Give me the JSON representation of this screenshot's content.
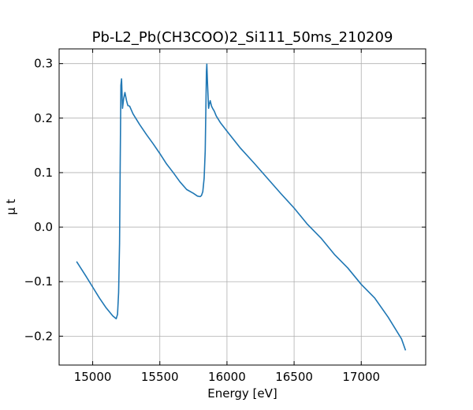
{
  "chart_data": {
    "type": "line",
    "title": "Pb-L2_Pb(CH3COO)2_Si111_50ms_210209",
    "xlabel": "Energy [eV]",
    "ylabel": "μ t",
    "xlim": [
      14750,
      17480
    ],
    "ylim": [
      -0.253,
      0.327
    ],
    "xticks": [
      15000,
      15500,
      16000,
      16500,
      17000
    ],
    "xtick_labels": [
      "15000",
      "15500",
      "16000",
      "16500",
      "17000"
    ],
    "yticks": [
      -0.2,
      -0.1,
      0.0,
      0.1,
      0.2,
      0.3
    ],
    "ytick_labels": [
      "−0.2",
      "−0.1",
      "0.0",
      "0.1",
      "0.2",
      "0.3"
    ],
    "grid": true,
    "legend": "none",
    "series": [
      {
        "color": "#1f77b4",
        "x": [
          14880,
          14950,
          15000,
          15050,
          15100,
          15150,
          15175,
          15185,
          15193,
          15200,
          15205,
          15210,
          15215,
          15222,
          15230,
          15240,
          15252,
          15262,
          15275,
          15300,
          15350,
          15400,
          15450,
          15500,
          15550,
          15600,
          15650,
          15700,
          15750,
          15780,
          15800,
          15810,
          15820,
          15830,
          15838,
          15843,
          15847,
          15850,
          15855,
          15860,
          15863,
          15868,
          15875,
          15885,
          15895,
          15905,
          15920,
          15950,
          16000,
          16100,
          16200,
          16300,
          16400,
          16500,
          16600,
          16700,
          16800,
          16900,
          17000,
          17100,
          17200,
          17300,
          17330
        ],
        "y": [
          -0.063,
          -0.09,
          -0.11,
          -0.13,
          -0.148,
          -0.163,
          -0.168,
          -0.16,
          -0.12,
          -0.03,
          0.12,
          0.26,
          0.272,
          0.218,
          0.235,
          0.247,
          0.232,
          0.223,
          0.222,
          0.208,
          0.188,
          0.17,
          0.153,
          0.135,
          0.116,
          0.1,
          0.083,
          0.069,
          0.062,
          0.057,
          0.056,
          0.058,
          0.065,
          0.09,
          0.14,
          0.22,
          0.285,
          0.299,
          0.265,
          0.235,
          0.218,
          0.225,
          0.232,
          0.222,
          0.217,
          0.213,
          0.204,
          0.192,
          0.176,
          0.145,
          0.118,
          0.09,
          0.062,
          0.035,
          0.005,
          -0.02,
          -0.05,
          -0.075,
          -0.105,
          -0.13,
          -0.165,
          -0.205,
          -0.226
        ]
      }
    ]
  }
}
